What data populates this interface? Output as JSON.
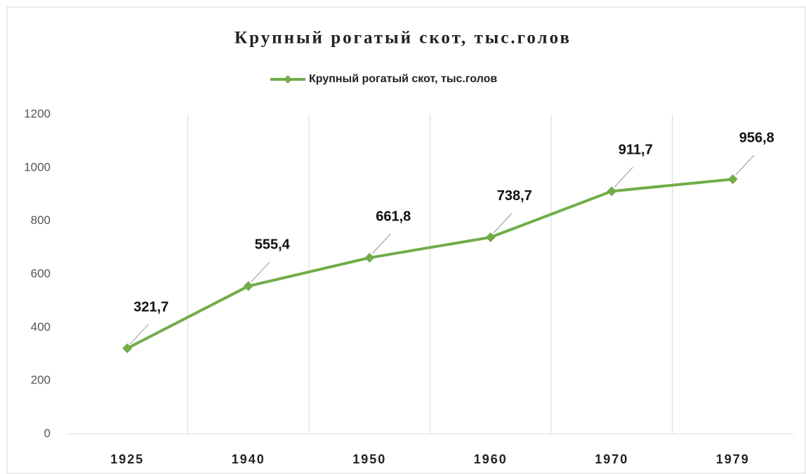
{
  "chart_data": {
    "type": "line",
    "title": "Крупный рогатый скот, тыс.голов",
    "categories": [
      "1925",
      "1940",
      "1950",
      "1960",
      "1970",
      "1979"
    ],
    "series": [
      {
        "name": "Крупный рогатый скот, тыс.голов",
        "color": "#70ad47",
        "values": [
          321.7,
          555.4,
          661.8,
          738.7,
          911.7,
          956.8
        ],
        "value_labels": [
          "321,7",
          "555,4",
          "661,8",
          "738,7",
          "911,7",
          "956,8"
        ]
      }
    ],
    "ylim": [
      0,
      1200
    ],
    "yticks": [
      0,
      200,
      400,
      600,
      800,
      1000,
      1200
    ],
    "legend": "top"
  }
}
